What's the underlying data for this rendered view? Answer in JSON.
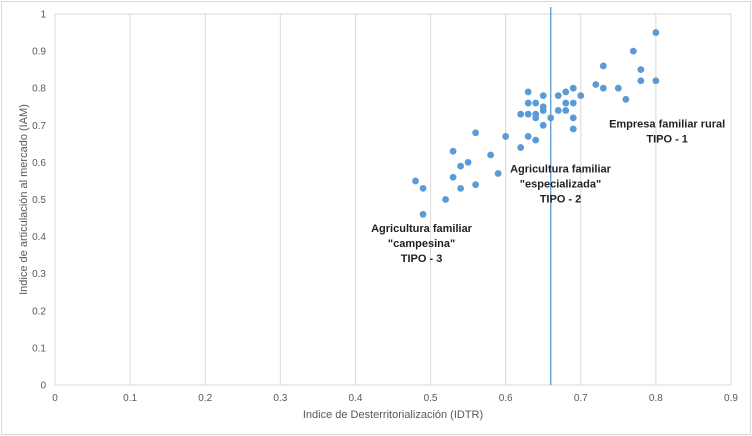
{
  "chart_data": {
    "type": "scatter",
    "xlabel": "Indice de Desterritorialización (IDTR)",
    "ylabel": "Indice de  articulación al mercado (IAM)",
    "xlim": [
      0,
      0.9
    ],
    "ylim": [
      0,
      1
    ],
    "xticks": [
      0,
      0.1,
      0.2,
      0.3,
      0.4,
      0.5,
      0.6,
      0.7,
      0.8,
      0.9
    ],
    "yticks": [
      0,
      0.1,
      0.2,
      0.3,
      0.4,
      0.5,
      0.6,
      0.7,
      0.8,
      0.9,
      1
    ],
    "xtick_labels": [
      "0",
      "0.1",
      "0.2",
      "0.3",
      "0.4",
      "0.5",
      "0.6",
      "0.7",
      "0.8",
      "0.9"
    ],
    "ytick_labels": [
      "0",
      "0.1",
      "0.2",
      "0.3",
      "0.4",
      "0.5",
      "0.6",
      "0.7",
      "0.8",
      "0.9",
      "1"
    ],
    "vertical_line_x": 0.66,
    "grid": "vertical",
    "colors": {
      "marker": "#5b9bd5",
      "vline": "#5b9bd5",
      "grid": "#d9d9d9"
    },
    "points": [
      [
        0.48,
        0.55
      ],
      [
        0.49,
        0.53
      ],
      [
        0.49,
        0.46
      ],
      [
        0.52,
        0.5
      ],
      [
        0.53,
        0.63
      ],
      [
        0.53,
        0.56
      ],
      [
        0.54,
        0.59
      ],
      [
        0.54,
        0.53
      ],
      [
        0.55,
        0.6
      ],
      [
        0.56,
        0.68
      ],
      [
        0.56,
        0.54
      ],
      [
        0.58,
        0.62
      ],
      [
        0.59,
        0.57
      ],
      [
        0.6,
        0.67
      ],
      [
        0.62,
        0.73
      ],
      [
        0.62,
        0.64
      ],
      [
        0.63,
        0.79
      ],
      [
        0.63,
        0.76
      ],
      [
        0.63,
        0.73
      ],
      [
        0.63,
        0.67
      ],
      [
        0.64,
        0.76
      ],
      [
        0.64,
        0.73
      ],
      [
        0.64,
        0.72
      ],
      [
        0.64,
        0.66
      ],
      [
        0.65,
        0.78
      ],
      [
        0.65,
        0.75
      ],
      [
        0.65,
        0.74
      ],
      [
        0.65,
        0.7
      ],
      [
        0.66,
        0.72
      ],
      [
        0.67,
        0.78
      ],
      [
        0.67,
        0.74
      ],
      [
        0.68,
        0.79
      ],
      [
        0.68,
        0.76
      ],
      [
        0.68,
        0.74
      ],
      [
        0.69,
        0.8
      ],
      [
        0.69,
        0.76
      ],
      [
        0.69,
        0.72
      ],
      [
        0.69,
        0.69
      ],
      [
        0.7,
        0.78
      ],
      [
        0.72,
        0.81
      ],
      [
        0.73,
        0.86
      ],
      [
        0.73,
        0.8
      ],
      [
        0.75,
        0.8
      ],
      [
        0.76,
        0.77
      ],
      [
        0.77,
        0.9
      ],
      [
        0.78,
        0.85
      ],
      [
        0.78,
        0.82
      ],
      [
        0.8,
        0.95
      ],
      [
        0.8,
        0.82
      ]
    ],
    "annotations": [
      {
        "lines": [
          "Empresa familiar rural",
          "TIPO - 1"
        ],
        "x": 0.815,
        "y": 0.694
      },
      {
        "lines": [
          "Agricultura familiar",
          "\"especializada\"",
          "TIPO - 2"
        ],
        "x": 0.673,
        "y": 0.573
      },
      {
        "lines": [
          "Agricultura familiar",
          "\"campesina\"",
          "TIPO - 3"
        ],
        "x": 0.488,
        "y": 0.412
      }
    ]
  }
}
